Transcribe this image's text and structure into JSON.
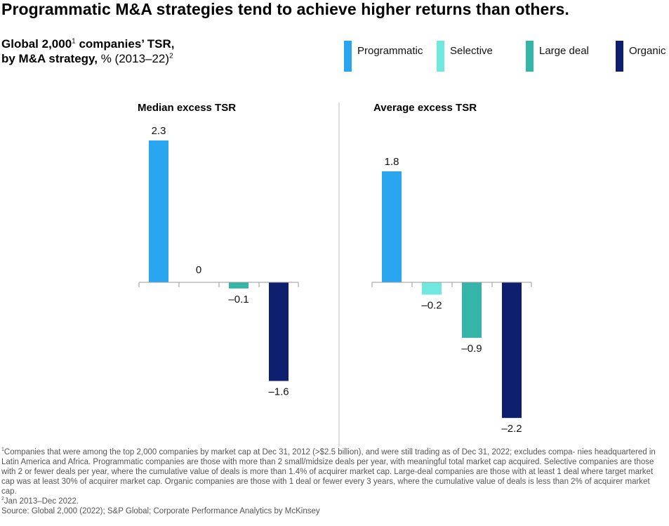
{
  "headline": "Programmatic M&A strategies tend to achieve higher returns than others.",
  "subtitle": {
    "line1_bold": "Global 2,000",
    "line1_sup": "1",
    "line1_rest_bold": " companies’ TSR,",
    "line2_bold": "by M&A strategy,",
    "line2_normal": " % (2013–22)",
    "line2_sup": "2"
  },
  "legend": [
    {
      "label": "Programmatic",
      "color": "#2aa6f0"
    },
    {
      "label": "Selective",
      "color": "#71e8df"
    },
    {
      "label": "Large deal",
      "color": "#35b5a8"
    },
    {
      "label": "Organic",
      "color": "#0d1f6e"
    }
  ],
  "chart_data": [
    {
      "type": "bar",
      "title": "Median excess TSR",
      "categories": [
        "Programmatic",
        "Selective",
        "Large deal",
        "Organic"
      ],
      "values": [
        2.3,
        0,
        -0.1,
        -1.6
      ],
      "value_labels": [
        "2.3",
        "0",
        "–0.1",
        "–1.6"
      ],
      "xlabel": "",
      "ylabel": "",
      "ylim": [
        -2.2,
        2.3
      ]
    },
    {
      "type": "bar",
      "title": "Average excess TSR",
      "categories": [
        "Programmatic",
        "Selective",
        "Large deal",
        "Organic"
      ],
      "values": [
        1.8,
        -0.2,
        -0.9,
        -2.2
      ],
      "value_labels": [
        "1.8",
        "–0.2",
        "–0.9",
        "–2.2"
      ],
      "xlabel": "",
      "ylabel": "",
      "ylim": [
        -2.2,
        2.3
      ]
    }
  ],
  "footnotes": {
    "note1_mark": "1",
    "note1": "Companies that were among the top 2,000 companies by market cap at Dec 31, 2012 (>$2.5 billion), and were still trading as of Dec 31, 2022; excludes compa- nies headquartered in Latin America and Africa. Programmatic companies are those with more than 2 small/midsize deals per year, with meaningful total market cap acquired. Selective companies are those with 2 or fewer deals per year, where the cumulative value of deals is more than 1.4% of acquirer market cap. Large-deal companies are those with at least 1 deal where target market cap was at least 30% of acquirer market cap. Organic companies are those with 1 deal or fewer every 3 years, where the cumulative value of deals is less than 2% of acquirer market cap.",
    "note2_mark": "2",
    "note2": "Jan 2013–Dec 2022.",
    "source": "Source: Global 2,000 (2022); S&P Global; Corporate Performance Analytics by McKinsey"
  }
}
